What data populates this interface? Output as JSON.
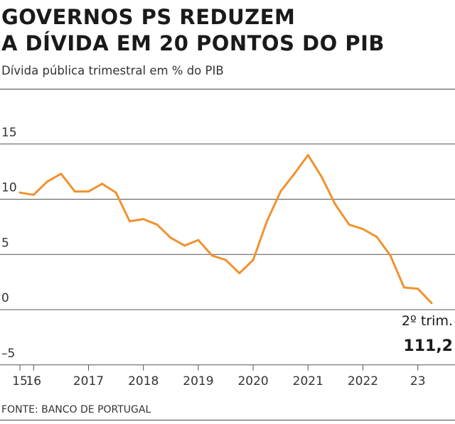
{
  "header": {
    "title_line1": "GOVERNOS PS REDUZEM",
    "title_line2": "A DÍVIDA EM 20 PONTOS DO PIB",
    "subtitle": "Dívida pública trimestral em % do PIB"
  },
  "footer": {
    "source": "FONTE: BANCO DE PORTUGAL"
  },
  "colors": {
    "line": "#f0922e",
    "grid": "#555555",
    "text": "#1a1a1a"
  },
  "chart_data": {
    "type": "line",
    "title": "GOVERNOS PS REDUZEM A DÍVIDA EM 20 PONTOS DO PIB",
    "subtitle": "Dívida pública trimestral em % do PIB",
    "ylim": [
      -5,
      15
    ],
    "y_ticks": [
      15,
      10,
      5,
      0,
      -5
    ],
    "y_tick_labels": [
      "15",
      "10",
      "5",
      "0",
      "–5"
    ],
    "x_tick_labels": [
      "15",
      "16",
      "2017",
      "2018",
      "2019",
      "2020",
      "2021",
      "2022",
      "23"
    ],
    "x_tick_positions": [
      0,
      1,
      5,
      9,
      13,
      17,
      21,
      25,
      29
    ],
    "grid": true,
    "series": [
      {
        "x": [
          0,
          1,
          2,
          3,
          4,
          5,
          6,
          7,
          8,
          9,
          10,
          11,
          12,
          13,
          14,
          15,
          16,
          17,
          18,
          19,
          20,
          21,
          22,
          23,
          24,
          25,
          26,
          27,
          28,
          29,
          30
        ],
        "values": [
          10.6,
          10.4,
          11.6,
          12.3,
          10.7,
          10.7,
          11.4,
          10.6,
          8.0,
          8.2,
          7.7,
          6.5,
          5.8,
          6.3,
          4.9,
          4.5,
          3.3,
          4.5,
          8.0,
          10.7,
          12.3,
          14.0,
          12.0,
          9.5,
          7.7,
          7.3,
          6.6,
          4.9,
          2.0,
          1.9,
          0.6
        ]
      }
    ],
    "annotations": [
      {
        "label": "2º trim.",
        "value": "111,2"
      }
    ],
    "source": "FONTE: BANCO DE PORTUGAL"
  }
}
